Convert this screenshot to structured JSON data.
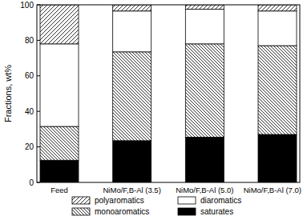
{
  "chart_data": {
    "type": "bar",
    "stacked": true,
    "y_label": "Fractions, wt%",
    "categories": [
      "Feed",
      "NiMo/F,B-Al (3.5)",
      "NiMo/F,B-Al (5.0)",
      "NiMo/F,B-Al (7.0)"
    ],
    "series": [
      {
        "name": "saturates",
        "color": "#000000",
        "values": [
          12.5,
          23.5,
          25.5,
          27
        ]
      },
      {
        "name": "monoaromatics",
        "color": "#ffffff",
        "values": [
          19,
          50,
          52.5,
          50
        ]
      },
      {
        "name": "diaromatics",
        "color": "#ffffff",
        "values": [
          46.5,
          23,
          19.5,
          19.5
        ]
      },
      {
        "name": "polyaromatics",
        "color": "#ffffff",
        "values": [
          22,
          3.5,
          2.5,
          3.5
        ]
      }
    ],
    "ylim": [
      0,
      100
    ],
    "yticks": [
      0,
      20,
      40,
      60,
      80,
      100
    ],
    "grid": false,
    "legend": "bottom"
  }
}
